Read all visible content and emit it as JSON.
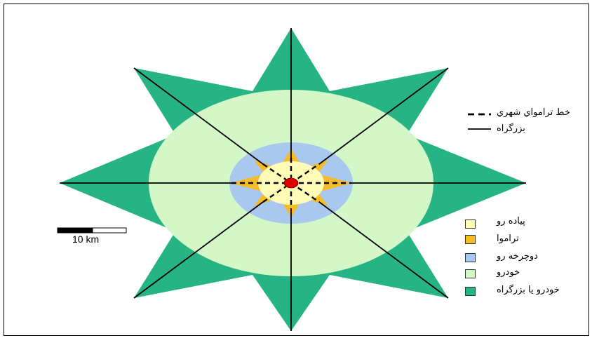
{
  "legend_lines": {
    "tram": {
      "label": "خط ترامواي شهري",
      "style": "dashed"
    },
    "highway": {
      "label": "بزرگراه",
      "style": "solid"
    }
  },
  "legend_areas": [
    {
      "label": "پياده رو",
      "color": "#fffcb8"
    },
    {
      "label": "ترامو‌ا",
      "color": "#f5bb28"
    },
    {
      "label": "دوچرخه رو",
      "color": "#a8c8f0"
    },
    {
      "label": "خودرو",
      "color": "#d3f7c7"
    },
    {
      "label": "خودرو يا بزرگراه",
      "color": "#27b485"
    }
  ],
  "scale_bar": {
    "label": "10 km"
  },
  "colors": {
    "frame": "#000000",
    "star_outer": "#27b485",
    "ellipse_car": "#d3f7c7",
    "ellipse_bike": "#a8c8f0",
    "star_tram": "#f5bb28",
    "ellipse_walk": "#fffcb8",
    "center": "#e00000",
    "spokes": "#000000"
  }
}
